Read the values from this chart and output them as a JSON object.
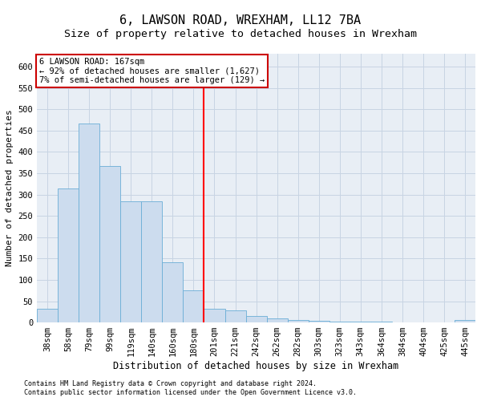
{
  "title": "6, LAWSON ROAD, WREXHAM, LL12 7BA",
  "subtitle": "Size of property relative to detached houses in Wrexham",
  "xlabel": "Distribution of detached houses by size in Wrexham",
  "ylabel": "Number of detached properties",
  "categories": [
    "38sqm",
    "58sqm",
    "79sqm",
    "99sqm",
    "119sqm",
    "140sqm",
    "160sqm",
    "180sqm",
    "201sqm",
    "221sqm",
    "242sqm",
    "262sqm",
    "282sqm",
    "303sqm",
    "323sqm",
    "343sqm",
    "364sqm",
    "384sqm",
    "404sqm",
    "425sqm",
    "445sqm"
  ],
  "values": [
    32,
    315,
    467,
    367,
    284,
    284,
    142,
    75,
    32,
    28,
    15,
    9,
    5,
    4,
    3,
    2,
    2,
    1,
    1,
    1,
    5
  ],
  "bar_color": "#ccdcee",
  "bar_edge_color": "#6aaed6",
  "grid_color": "#c8d4e3",
  "background_color": "#e8eef5",
  "red_line_x": 7.5,
  "annotation_text": "6 LAWSON ROAD: 167sqm\n← 92% of detached houses are smaller (1,627)\n7% of semi-detached houses are larger (129) →",
  "footnote1": "Contains HM Land Registry data © Crown copyright and database right 2024.",
  "footnote2": "Contains public sector information licensed under the Open Government Licence v3.0.",
  "ylim": [
    0,
    630
  ],
  "yticks": [
    0,
    50,
    100,
    150,
    200,
    250,
    300,
    350,
    400,
    450,
    500,
    550,
    600
  ],
  "title_fontsize": 11,
  "subtitle_fontsize": 9.5,
  "xlabel_fontsize": 8.5,
  "ylabel_fontsize": 8,
  "tick_fontsize": 7.5,
  "annotation_fontsize": 7.5,
  "annotation_box_color": "#ffffff",
  "annotation_box_edge": "#cc0000",
  "footnote_fontsize": 6
}
